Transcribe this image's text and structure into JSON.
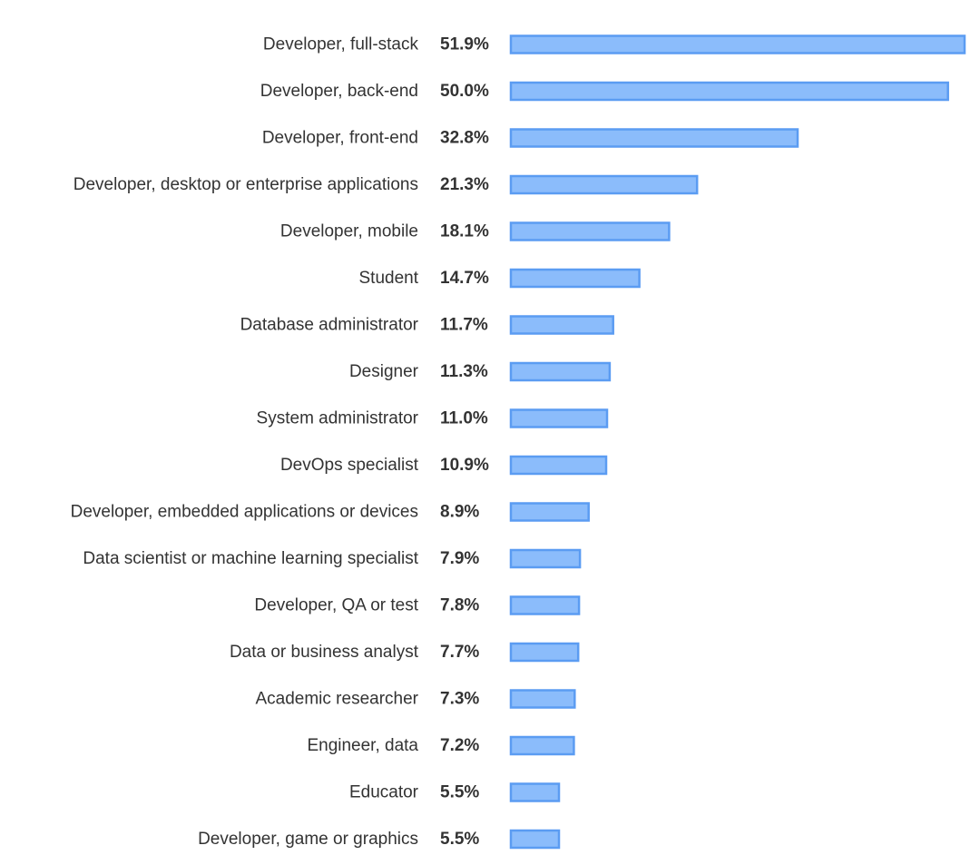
{
  "chart_data": {
    "type": "bar",
    "orientation": "horizontal",
    "categories": [
      "Developer, full-stack",
      "Developer, back-end",
      "Developer, front-end",
      "Developer, desktop or enterprise applications",
      "Developer, mobile",
      "Student",
      "Database administrator",
      "Designer",
      "System administrator",
      "DevOps specialist",
      "Developer, embedded applications or devices",
      "Data scientist or machine learning specialist",
      "Developer, QA or test",
      "Data or business analyst",
      "Academic researcher",
      "Engineer, data",
      "Educator",
      "Developer, game or graphics"
    ],
    "values": [
      51.9,
      50.0,
      32.8,
      21.3,
      18.1,
      14.7,
      11.7,
      11.3,
      11.0,
      10.9,
      8.9,
      7.9,
      7.8,
      7.7,
      7.3,
      7.2,
      5.5,
      5.5
    ],
    "value_labels": [
      "51.9%",
      "50.0%",
      "32.8%",
      "21.3%",
      "18.1%",
      "14.7%",
      "11.7%",
      "11.3%",
      "11.0%",
      "10.9%",
      "8.9%",
      "7.9%",
      "7.8%",
      "7.7%",
      "7.3%",
      "7.2%",
      "5.5%",
      "5.5%"
    ],
    "unit": "%",
    "xlim": [
      0,
      51.9
    ],
    "grid": false,
    "legend": "none",
    "colors": {
      "bar_fill": "#8bbcfb",
      "bar_stroke": "#5b9cf2",
      "text": "#333333"
    }
  }
}
